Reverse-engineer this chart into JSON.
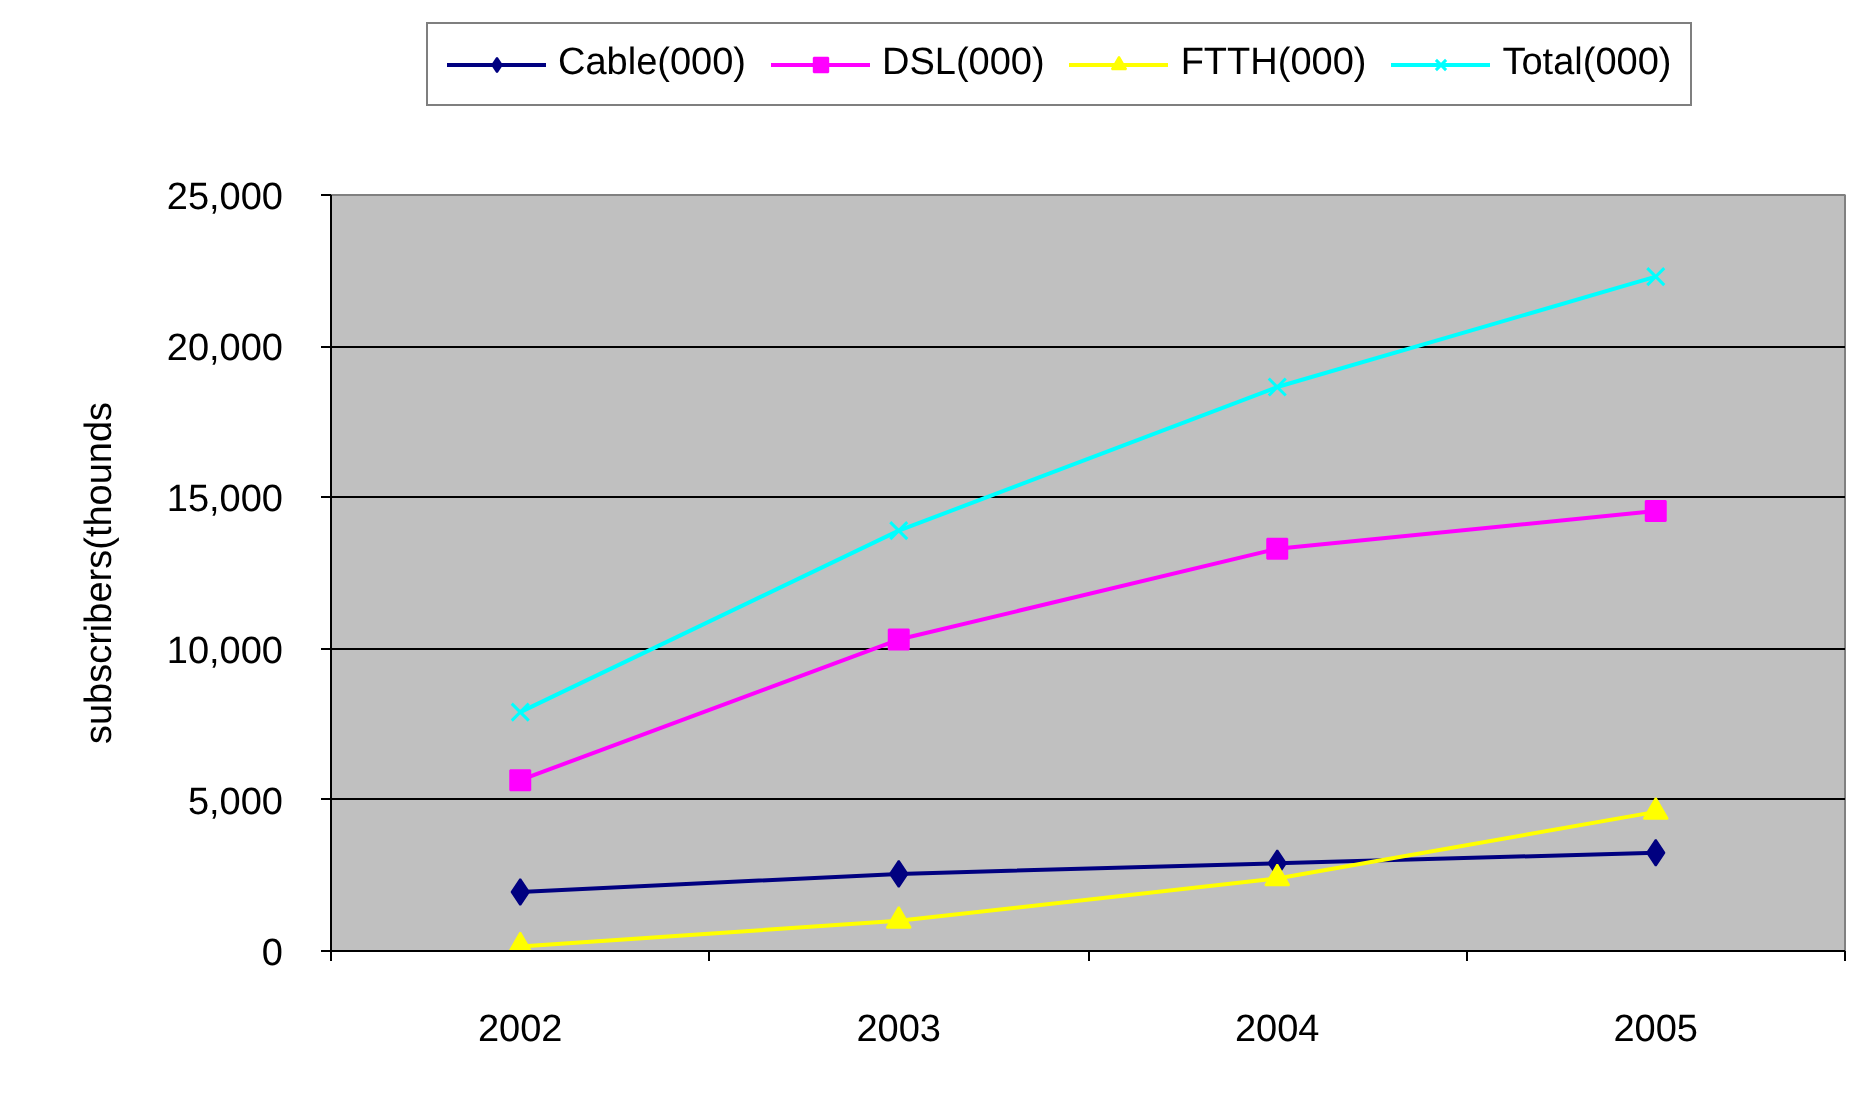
{
  "chart_data": {
    "type": "line",
    "ylabel": "subscribers(thounds",
    "categories": [
      "2002",
      "2003",
      "2004",
      "2005"
    ],
    "series": [
      {
        "name": "Cable(000)",
        "color": "#000080",
        "marker": "diamond",
        "values": [
          1950,
          2550,
          2900,
          3250
        ]
      },
      {
        "name": "DSL(000)",
        "color": "#ff00ff",
        "marker": "square",
        "values": [
          5650,
          10300,
          13300,
          14550
        ]
      },
      {
        "name": "FTTH(000)",
        "color": "#ffff00",
        "marker": "triangle",
        "values": [
          150,
          1000,
          2400,
          4600
        ]
      },
      {
        "name": "Total(000)",
        "color": "#00ffff",
        "marker": "cross",
        "values": [
          7900,
          13900,
          18650,
          22300
        ]
      }
    ],
    "ylim": [
      0,
      25000
    ],
    "yticks": [
      0,
      {
        "value": 5000,
        "label": "5,000"
      },
      {
        "value": 10000,
        "label": "10,000"
      },
      {
        "value": 15000,
        "label": "15,000"
      },
      {
        "value": 20000,
        "label": "20,000"
      },
      {
        "value": 25000,
        "label": "25,000"
      }
    ],
    "grid": "y",
    "legend": "top"
  }
}
